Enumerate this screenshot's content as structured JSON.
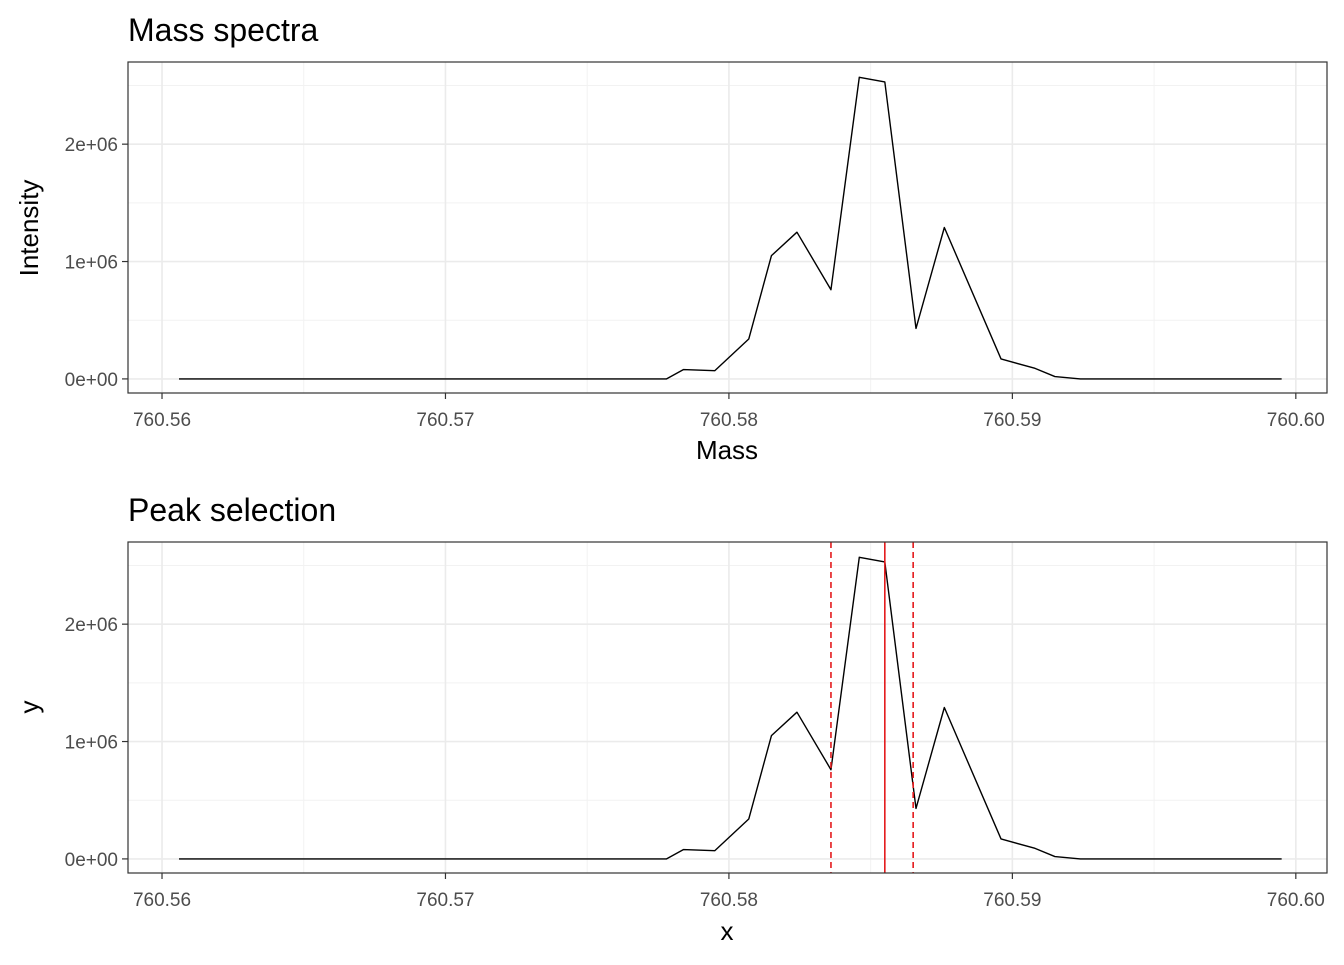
{
  "chart_data": [
    {
      "type": "line",
      "title": "Mass spectra",
      "xlabel": "Mass",
      "ylabel": "Intensity",
      "xlim": [
        760.5588,
        760.6011
      ],
      "ylim": [
        -120000,
        2700000
      ],
      "x_ticks": [
        760.56,
        760.57,
        760.58,
        760.59,
        760.6
      ],
      "x_tick_labels": [
        "760.56",
        "760.57",
        "760.58",
        "760.59",
        "760.60"
      ],
      "y_ticks": [
        0,
        1000000,
        2000000
      ],
      "y_tick_labels": [
        "0e+00",
        "1e+06",
        "2e+06"
      ],
      "grid": true,
      "series": [
        {
          "color": "#000000",
          "x": [
            760.5606,
            760.5778,
            760.5784,
            760.5795,
            760.5807,
            760.5815,
            760.5824,
            760.5836,
            760.5846,
            760.5855,
            760.5866,
            760.5876,
            760.5896,
            760.5908,
            760.5915,
            760.5924,
            760.5995
          ],
          "y": [
            0,
            0,
            80000,
            70000,
            340000,
            1050000,
            1250000,
            760000,
            2570000,
            2530000,
            430000,
            1290000,
            170000,
            90000,
            20000,
            0,
            0
          ]
        }
      ]
    },
    {
      "type": "line",
      "title": "Peak selection",
      "xlabel": "x",
      "ylabel": "y",
      "xlim": [
        760.5588,
        760.6011
      ],
      "ylim": [
        -120000,
        2700000
      ],
      "x_ticks": [
        760.56,
        760.57,
        760.58,
        760.59,
        760.6
      ],
      "x_tick_labels": [
        "760.56",
        "760.57",
        "760.58",
        "760.59",
        "760.60"
      ],
      "y_ticks": [
        0,
        1000000,
        2000000
      ],
      "y_tick_labels": [
        "0e+00",
        "1e+06",
        "2e+06"
      ],
      "grid": true,
      "series": [
        {
          "color": "#000000",
          "x": [
            760.5606,
            760.5778,
            760.5784,
            760.5795,
            760.5807,
            760.5815,
            760.5824,
            760.5836,
            760.5846,
            760.5855,
            760.5866,
            760.5876,
            760.5896,
            760.5908,
            760.5915,
            760.5924,
            760.5995
          ],
          "y": [
            0,
            0,
            80000,
            70000,
            340000,
            1050000,
            1250000,
            760000,
            2570000,
            2530000,
            430000,
            1290000,
            170000,
            90000,
            20000,
            0,
            0
          ]
        }
      ],
      "vlines": [
        {
          "x": 760.5836,
          "style": "dashed",
          "color": "#e41a1c"
        },
        {
          "x": 760.5855,
          "style": "solid",
          "color": "#e41a1c"
        },
        {
          "x": 760.5865,
          "style": "dashed",
          "color": "#e41a1c"
        }
      ]
    }
  ]
}
